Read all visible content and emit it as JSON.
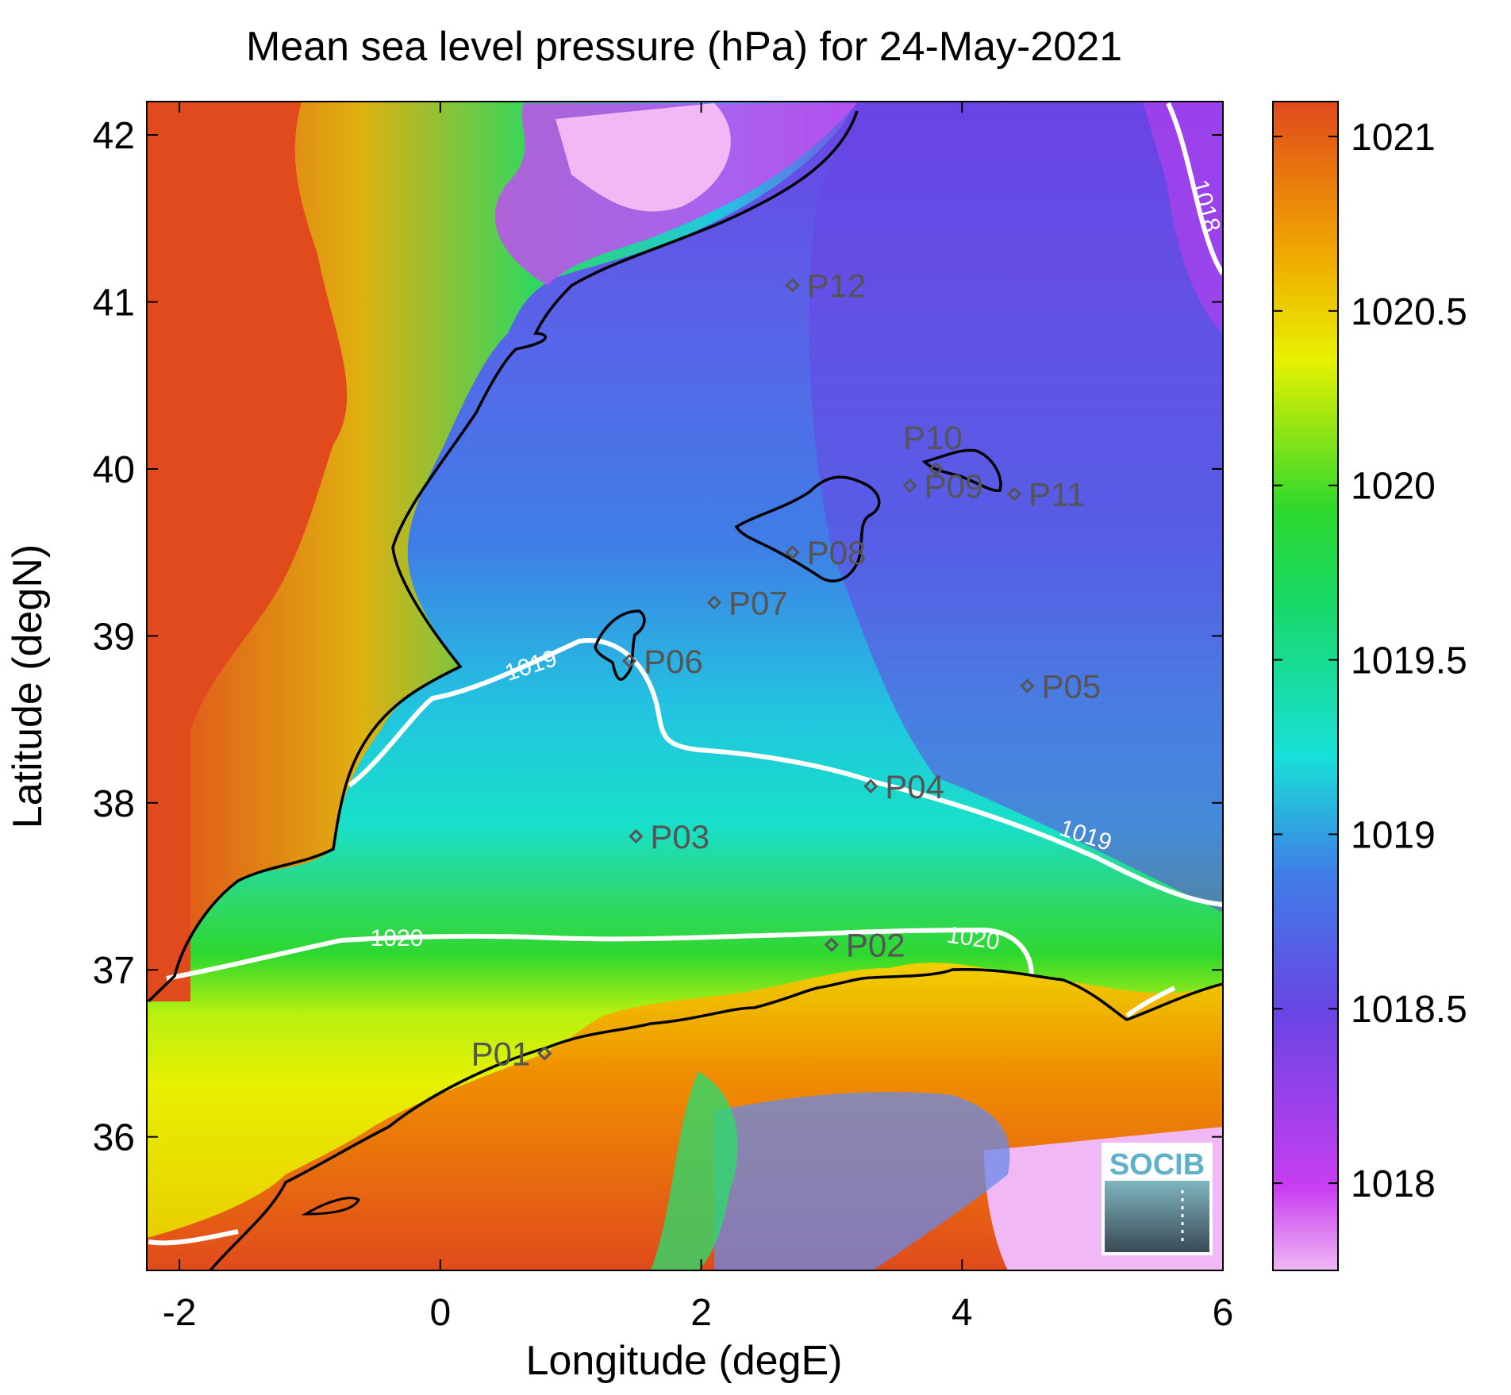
{
  "title": "Mean sea level pressure (hPa) for 24-May-2021",
  "xlabel": "Longitude (degE)",
  "ylabel": "Latitude (degN)",
  "xticks": [
    "-2",
    "0",
    "2",
    "4",
    "6"
  ],
  "yticks": [
    "36",
    "37",
    "38",
    "39",
    "40",
    "41",
    "42"
  ],
  "colorbar": {
    "ticks": [
      "1018",
      "1018.5",
      "1019",
      "1019.5",
      "1020",
      "1020.5",
      "1021"
    ],
    "range": [
      1017.75,
      1021.1
    ]
  },
  "contour_labels": {
    "c1018": "1018",
    "c1019_west": "1019",
    "c1019_east": "1019",
    "c1020_west": "1020",
    "c1020_east": "1020"
  },
  "points": [
    {
      "label": "P01",
      "lon": 0.8,
      "lat": 36.5
    },
    {
      "label": "P02",
      "lon": 3.0,
      "lat": 37.15
    },
    {
      "label": "P03",
      "lon": 1.5,
      "lat": 37.8
    },
    {
      "label": "P04",
      "lon": 3.3,
      "lat": 38.1
    },
    {
      "label": "P05",
      "lon": 4.5,
      "lat": 38.7
    },
    {
      "label": "P06",
      "lon": 1.45,
      "lat": 38.85
    },
    {
      "label": "P07",
      "lon": 2.1,
      "lat": 39.2
    },
    {
      "label": "P08",
      "lon": 2.7,
      "lat": 39.5
    },
    {
      "label": "P09",
      "lon": 3.6,
      "lat": 39.9
    },
    {
      "label": "P10",
      "lon": 3.8,
      "lat": 40.0
    },
    {
      "label": "P11",
      "lon": 4.4,
      "lat": 39.85
    },
    {
      "label": "P12",
      "lon": 2.7,
      "lat": 41.1
    }
  ],
  "logo": "SOCIB",
  "colors": {
    "high": "#e04a1c",
    "yellow": "#e8f000",
    "green": "#2ed82e",
    "cyan": "#18e0d8",
    "blue": "#3f7ee6",
    "purple": "#6a44e4",
    "low": "#f0b8f4",
    "contour": "#ffffff",
    "coast": "#000000",
    "marker": "#555555"
  }
}
